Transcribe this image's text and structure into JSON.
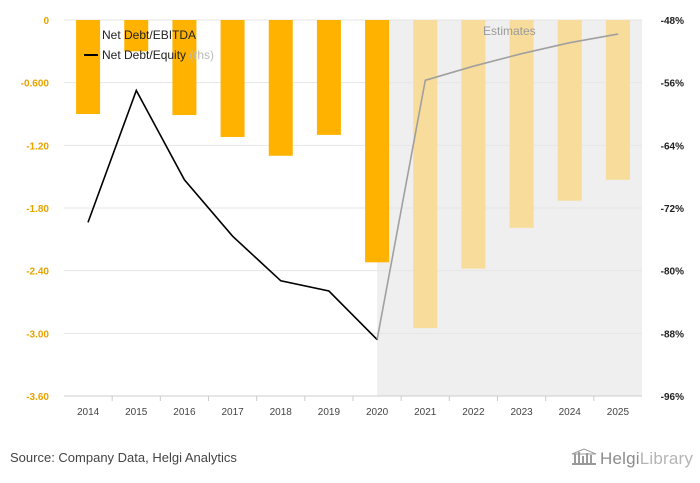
{
  "chart_data": {
    "type": "bar+line",
    "categories": [
      "2014",
      "2015",
      "2016",
      "2017",
      "2018",
      "2019",
      "2020",
      "2021",
      "2022",
      "2023",
      "2024",
      "2025"
    ],
    "estimate_start": "2021",
    "estimates_label": "Estimates",
    "series": [
      {
        "name": "Net Debt/EBITDA",
        "type": "bar",
        "axis": "left",
        "values": [
          -0.9,
          -0.3,
          -0.91,
          -1.12,
          -1.3,
          -1.1,
          -2.32,
          -2.95,
          -2.38,
          -1.99,
          -1.73,
          -1.53
        ]
      },
      {
        "name": "Net Debt/Equity",
        "name_suffix": "(rhs)",
        "type": "line",
        "axis": "right",
        "values": [
          -73.8,
          -57.0,
          -68.4,
          -75.6,
          -81.3,
          -82.6,
          -88.8,
          -55.7,
          -53.9,
          -52.3,
          -50.9,
          -49.8
        ]
      }
    ],
    "left_axis": {
      "min": -3.6,
      "max": 0,
      "ticks": [
        "0",
        "-0.600",
        "-1.20",
        "-1.80",
        "-2.40",
        "-3.00",
        "-3.60"
      ]
    },
    "right_axis": {
      "min": -96,
      "max": -48,
      "ticks": [
        "-48%",
        "-56%",
        "-64%",
        "-72%",
        "-80%",
        "-88%",
        "-96%"
      ]
    },
    "colors": {
      "bar": "#ffb300",
      "bar_estimate": "#f7dc9c",
      "line": "#000000",
      "line_estimate": "#a0a0a0",
      "estimate_bg": "#efefef",
      "grid": "#e6e6e6"
    },
    "grid": true,
    "legend_position": "top-left"
  },
  "footer": {
    "source": "Source: Company Data, Helgi Analytics",
    "brand_a": "Helgi",
    "brand_b": "Library"
  }
}
